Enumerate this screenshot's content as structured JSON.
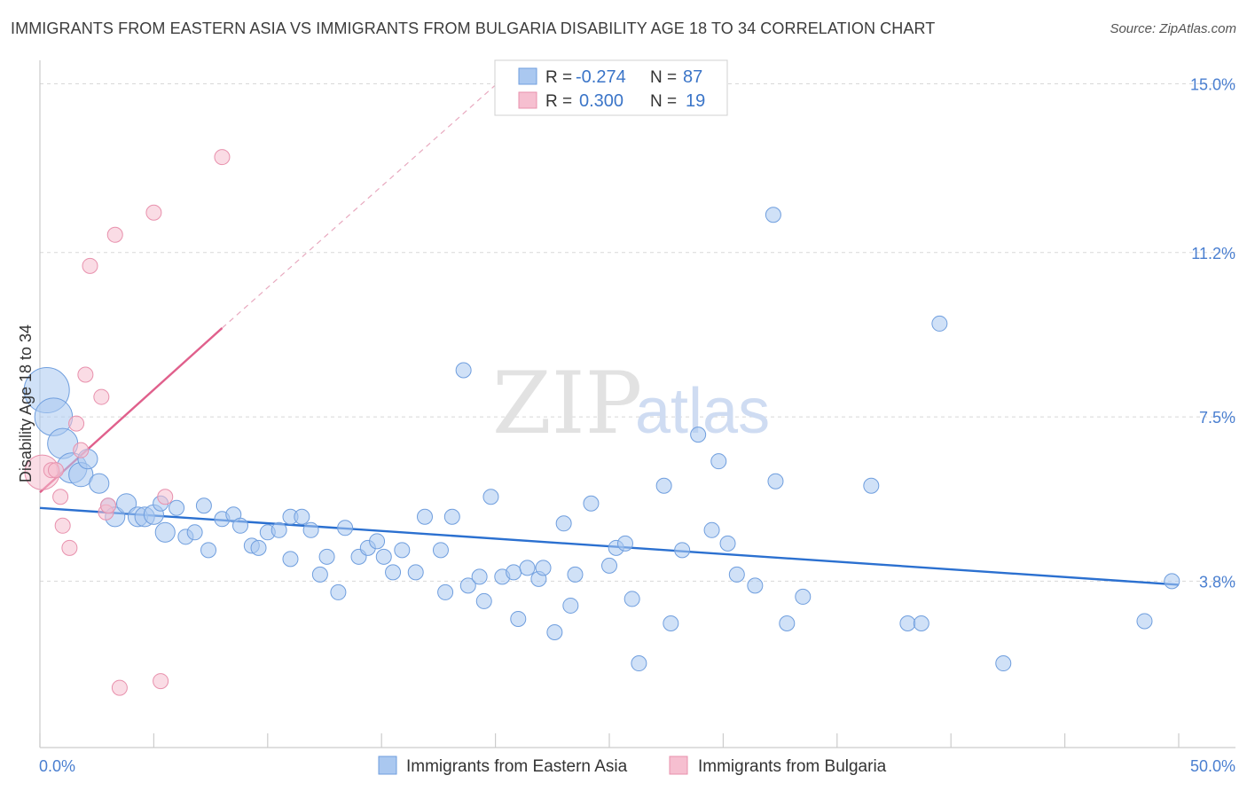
{
  "title": "IMMIGRANTS FROM EASTERN ASIA VS IMMIGRANTS FROM BULGARIA DISABILITY AGE 18 TO 34 CORRELATION CHART",
  "source": "Source: ZipAtlas.com",
  "watermark": {
    "zip": "ZIP",
    "atlas": "atlas"
  },
  "colors": {
    "blue_fill": "#aac8f0",
    "blue_stroke": "#6f9ede",
    "blue_line": "#2b70d0",
    "pink_fill": "#f6bfd0",
    "pink_stroke": "#e891ad",
    "pink_line": "#e0608c",
    "tick_text": "#4a7fd0",
    "grid": "#d8d8d8"
  },
  "legend": {
    "rows": [
      {
        "r_label": "R = ",
        "r_value": "-0.274",
        "n_label": "N = ",
        "n_value": "87"
      },
      {
        "r_label": "R = ",
        "r_value": "0.300",
        "n_label": "N = ",
        "n_value": "19"
      }
    ]
  },
  "bottom_legend": [
    "Immigrants from Eastern Asia",
    "Immigrants from Bulgaria"
  ],
  "chart_data": {
    "type": "scatter",
    "title": "IMMIGRANTS FROM EASTERN ASIA VS IMMIGRANTS FROM BULGARIA DISABILITY AGE 18 TO 34 CORRELATION CHART",
    "xlabel": "",
    "ylabel": "Disability Age 18 to 34",
    "xlim": [
      0,
      50
    ],
    "ylim": [
      0,
      15.5
    ],
    "x_tick_labels": [
      {
        "value": 0,
        "label": "0.0%"
      },
      {
        "value": 50,
        "label": "50.0%"
      }
    ],
    "y_ticks": [
      {
        "value": 3.8,
        "label": "3.8%"
      },
      {
        "value": 7.5,
        "label": "7.5%"
      },
      {
        "value": 11.2,
        "label": "11.2%"
      },
      {
        "value": 15.0,
        "label": "15.0%"
      }
    ],
    "series": [
      {
        "name": "Immigrants from Eastern Asia",
        "R": -0.274,
        "N": 87,
        "trend": {
          "x0": 0,
          "y0": 5.45,
          "x1": 50,
          "y1": 3.72
        },
        "points": [
          {
            "x": 0.3,
            "y": 8.1,
            "s": 3
          },
          {
            "x": 0.6,
            "y": 7.5,
            "s": 2.5
          },
          {
            "x": 1.0,
            "y": 6.9,
            "s": 2
          },
          {
            "x": 1.4,
            "y": 6.35,
            "s": 2
          },
          {
            "x": 1.8,
            "y": 6.2,
            "s": 1.6
          },
          {
            "x": 2.1,
            "y": 6.55,
            "s": 1.3
          },
          {
            "x": 2.6,
            "y": 6.0,
            "s": 1.3
          },
          {
            "x": 3.0,
            "y": 5.5,
            "s": 1
          },
          {
            "x": 3.3,
            "y": 5.25,
            "s": 1.3
          },
          {
            "x": 3.8,
            "y": 5.55,
            "s": 1.3
          },
          {
            "x": 4.3,
            "y": 5.25,
            "s": 1.3
          },
          {
            "x": 4.6,
            "y": 5.25,
            "s": 1.3
          },
          {
            "x": 5.0,
            "y": 5.3,
            "s": 1.3
          },
          {
            "x": 5.3,
            "y": 5.55,
            "s": 1
          },
          {
            "x": 5.5,
            "y": 4.9,
            "s": 1.3
          },
          {
            "x": 6.0,
            "y": 5.45,
            "s": 1
          },
          {
            "x": 6.4,
            "y": 4.8,
            "s": 1
          },
          {
            "x": 6.8,
            "y": 4.9,
            "s": 1
          },
          {
            "x": 7.2,
            "y": 5.5,
            "s": 1
          },
          {
            "x": 7.4,
            "y": 4.5,
            "s": 1
          },
          {
            "x": 8.0,
            "y": 5.2,
            "s": 1
          },
          {
            "x": 8.5,
            "y": 5.3,
            "s": 1
          },
          {
            "x": 8.8,
            "y": 5.05,
            "s": 1
          },
          {
            "x": 9.3,
            "y": 4.6,
            "s": 1
          },
          {
            "x": 9.6,
            "y": 4.55,
            "s": 1
          },
          {
            "x": 10.0,
            "y": 4.9,
            "s": 1
          },
          {
            "x": 10.5,
            "y": 4.95,
            "s": 1
          },
          {
            "x": 11.0,
            "y": 5.25,
            "s": 1
          },
          {
            "x": 11.0,
            "y": 4.3,
            "s": 1
          },
          {
            "x": 11.5,
            "y": 5.25,
            "s": 1
          },
          {
            "x": 11.9,
            "y": 4.95,
            "s": 1
          },
          {
            "x": 12.3,
            "y": 3.95,
            "s": 1
          },
          {
            "x": 12.6,
            "y": 4.35,
            "s": 1
          },
          {
            "x": 13.1,
            "y": 3.55,
            "s": 1
          },
          {
            "x": 13.4,
            "y": 5.0,
            "s": 1
          },
          {
            "x": 14.0,
            "y": 4.35,
            "s": 1
          },
          {
            "x": 14.4,
            "y": 4.55,
            "s": 1
          },
          {
            "x": 14.8,
            "y": 4.7,
            "s": 1
          },
          {
            "x": 15.1,
            "y": 4.35,
            "s": 1
          },
          {
            "x": 15.5,
            "y": 4.0,
            "s": 1
          },
          {
            "x": 15.9,
            "y": 4.5,
            "s": 1
          },
          {
            "x": 16.5,
            "y": 4.0,
            "s": 1
          },
          {
            "x": 16.9,
            "y": 5.25,
            "s": 1
          },
          {
            "x": 17.6,
            "y": 4.5,
            "s": 1
          },
          {
            "x": 17.8,
            "y": 3.55,
            "s": 1
          },
          {
            "x": 18.1,
            "y": 5.25,
            "s": 1
          },
          {
            "x": 18.6,
            "y": 8.55,
            "s": 1
          },
          {
            "x": 18.8,
            "y": 3.7,
            "s": 1
          },
          {
            "x": 19.3,
            "y": 3.9,
            "s": 1
          },
          {
            "x": 19.5,
            "y": 3.35,
            "s": 1
          },
          {
            "x": 19.8,
            "y": 5.7,
            "s": 1
          },
          {
            "x": 20.3,
            "y": 3.9,
            "s": 1
          },
          {
            "x": 20.8,
            "y": 4.0,
            "s": 1
          },
          {
            "x": 21.0,
            "y": 2.95,
            "s": 1
          },
          {
            "x": 21.4,
            "y": 4.1,
            "s": 1
          },
          {
            "x": 21.9,
            "y": 3.85,
            "s": 1
          },
          {
            "x": 22.1,
            "y": 4.1,
            "s": 1
          },
          {
            "x": 22.6,
            "y": 2.65,
            "s": 1
          },
          {
            "x": 23.0,
            "y": 5.1,
            "s": 1
          },
          {
            "x": 23.3,
            "y": 3.25,
            "s": 1
          },
          {
            "x": 23.5,
            "y": 3.95,
            "s": 1
          },
          {
            "x": 24.2,
            "y": 5.55,
            "s": 1
          },
          {
            "x": 25.0,
            "y": 4.15,
            "s": 1
          },
          {
            "x": 25.3,
            "y": 4.55,
            "s": 1
          },
          {
            "x": 25.7,
            "y": 4.65,
            "s": 1
          },
          {
            "x": 26.0,
            "y": 3.4,
            "s": 1
          },
          {
            "x": 26.3,
            "y": 1.95,
            "s": 1
          },
          {
            "x": 27.4,
            "y": 5.95,
            "s": 1
          },
          {
            "x": 27.7,
            "y": 2.85,
            "s": 1
          },
          {
            "x": 28.2,
            "y": 4.5,
            "s": 1
          },
          {
            "x": 28.9,
            "y": 7.1,
            "s": 1
          },
          {
            "x": 29.5,
            "y": 4.95,
            "s": 1
          },
          {
            "x": 29.8,
            "y": 6.5,
            "s": 1
          },
          {
            "x": 30.2,
            "y": 4.65,
            "s": 1
          },
          {
            "x": 30.6,
            "y": 3.95,
            "s": 1
          },
          {
            "x": 31.4,
            "y": 3.7,
            "s": 1
          },
          {
            "x": 32.2,
            "y": 12.05,
            "s": 1
          },
          {
            "x": 32.3,
            "y": 6.05,
            "s": 1
          },
          {
            "x": 32.8,
            "y": 2.85,
            "s": 1
          },
          {
            "x": 33.5,
            "y": 3.45,
            "s": 1
          },
          {
            "x": 36.5,
            "y": 5.95,
            "s": 1
          },
          {
            "x": 38.1,
            "y": 2.85,
            "s": 1
          },
          {
            "x": 38.7,
            "y": 2.85,
            "s": 1
          },
          {
            "x": 39.5,
            "y": 9.6,
            "s": 1
          },
          {
            "x": 42.3,
            "y": 1.95,
            "s": 1
          },
          {
            "x": 48.5,
            "y": 2.9,
            "s": 1
          },
          {
            "x": 49.7,
            "y": 3.8,
            "s": 1
          }
        ]
      },
      {
        "name": "Immigrants from Bulgaria",
        "R": 0.3,
        "N": 19,
        "trend": {
          "x0": 0,
          "y0": 5.8,
          "x1": 8.0,
          "y1": 9.5
        },
        "trend_dashed": {
          "x0": 8.0,
          "y0": 9.5,
          "x1": 20.5,
          "y1": 15.2
        },
        "points": [
          {
            "x": 0.1,
            "y": 6.25,
            "s": 2.3
          },
          {
            "x": 0.5,
            "y": 6.3,
            "s": 1
          },
          {
            "x": 0.7,
            "y": 6.3,
            "s": 1
          },
          {
            "x": 0.9,
            "y": 5.7,
            "s": 1
          },
          {
            "x": 1.0,
            "y": 5.05,
            "s": 1
          },
          {
            "x": 1.3,
            "y": 4.55,
            "s": 1
          },
          {
            "x": 1.6,
            "y": 7.35,
            "s": 1
          },
          {
            "x": 1.8,
            "y": 6.75,
            "s": 1
          },
          {
            "x": 2.0,
            "y": 8.45,
            "s": 1
          },
          {
            "x": 2.2,
            "y": 10.9,
            "s": 1
          },
          {
            "x": 2.7,
            "y": 7.95,
            "s": 1
          },
          {
            "x": 2.9,
            "y": 5.35,
            "s": 1
          },
          {
            "x": 3.0,
            "y": 5.5,
            "s": 1
          },
          {
            "x": 3.3,
            "y": 11.6,
            "s": 1
          },
          {
            "x": 3.5,
            "y": 1.4,
            "s": 1
          },
          {
            "x": 5.0,
            "y": 12.1,
            "s": 1
          },
          {
            "x": 5.3,
            "y": 1.55,
            "s": 1
          },
          {
            "x": 5.5,
            "y": 5.7,
            "s": 1
          },
          {
            "x": 8.0,
            "y": 13.35,
            "s": 1
          }
        ]
      }
    ]
  }
}
